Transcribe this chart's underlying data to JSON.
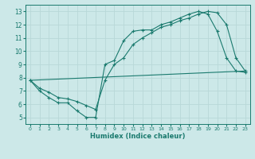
{
  "xlabel": "Humidex (Indice chaleur)",
  "xlim": [
    -0.5,
    23.5
  ],
  "ylim": [
    4.5,
    13.5
  ],
  "xticks": [
    0,
    1,
    2,
    3,
    4,
    5,
    6,
    7,
    8,
    9,
    10,
    11,
    12,
    13,
    14,
    15,
    16,
    17,
    18,
    19,
    20,
    21,
    22,
    23
  ],
  "yticks": [
    5,
    6,
    7,
    8,
    9,
    10,
    11,
    12,
    13
  ],
  "bg_color": "#cce8e8",
  "grid_color": "#b8d8d8",
  "line_color": "#1a7a6e",
  "line1_x": [
    0,
    1,
    2,
    3,
    4,
    5,
    6,
    7,
    8,
    9,
    10,
    11,
    12,
    13,
    14,
    15,
    16,
    17,
    18,
    19,
    20,
    21,
    22,
    23
  ],
  "line1_y": [
    7.8,
    7.0,
    6.5,
    6.1,
    6.1,
    5.5,
    5.0,
    5.0,
    9.0,
    9.3,
    10.8,
    11.5,
    11.6,
    11.6,
    12.0,
    12.2,
    12.5,
    12.8,
    13.0,
    12.8,
    11.5,
    9.5,
    8.5,
    8.4
  ],
  "line2_x": [
    0,
    23
  ],
  "line2_y": [
    7.8,
    8.5
  ],
  "line3_x": [
    0,
    1,
    2,
    3,
    4,
    5,
    6,
    7,
    8,
    9,
    10,
    11,
    12,
    13,
    14,
    15,
    16,
    17,
    18,
    19,
    20,
    21,
    22,
    23
  ],
  "line3_y": [
    7.8,
    7.2,
    6.9,
    6.5,
    6.4,
    6.2,
    5.9,
    5.6,
    7.8,
    9.0,
    9.5,
    10.5,
    11.0,
    11.4,
    11.8,
    12.0,
    12.3,
    12.5,
    12.8,
    13.0,
    12.9,
    12.0,
    9.5,
    8.5
  ]
}
